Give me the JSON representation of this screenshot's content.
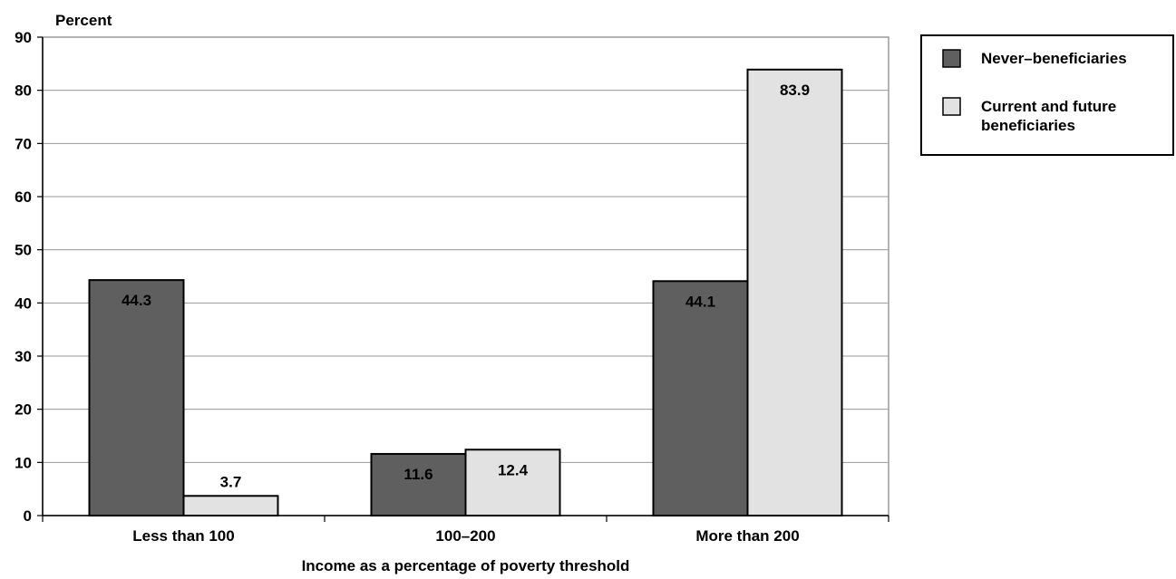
{
  "chart_data": {
    "type": "bar",
    "title": "",
    "ylabel": "Percent",
    "xlabel": "Income as a percentage of poverty threshold",
    "categories": [
      "Less than 100",
      "100–200",
      "More than 200"
    ],
    "series": [
      {
        "name": "Never–beneficiaries",
        "values": [
          44.3,
          11.6,
          44.1
        ],
        "color": "#5f5f5f"
      },
      {
        "name": "Current and future beneficiaries",
        "values": [
          3.7,
          12.4,
          83.9
        ],
        "color": "#e2e2e2"
      }
    ],
    "ylim": [
      0,
      90
    ],
    "yticks": [
      0,
      10,
      20,
      30,
      40,
      50,
      60,
      70,
      80,
      90
    ],
    "grid": true,
    "legend": "top-right",
    "data_labels": true,
    "colors": {
      "plot_border": "#9a9a9a",
      "gridline": "#9a9a9a",
      "bar_outline": "#000000",
      "label_on_dark": "#ffffff",
      "label_on_light": "#000000"
    }
  }
}
